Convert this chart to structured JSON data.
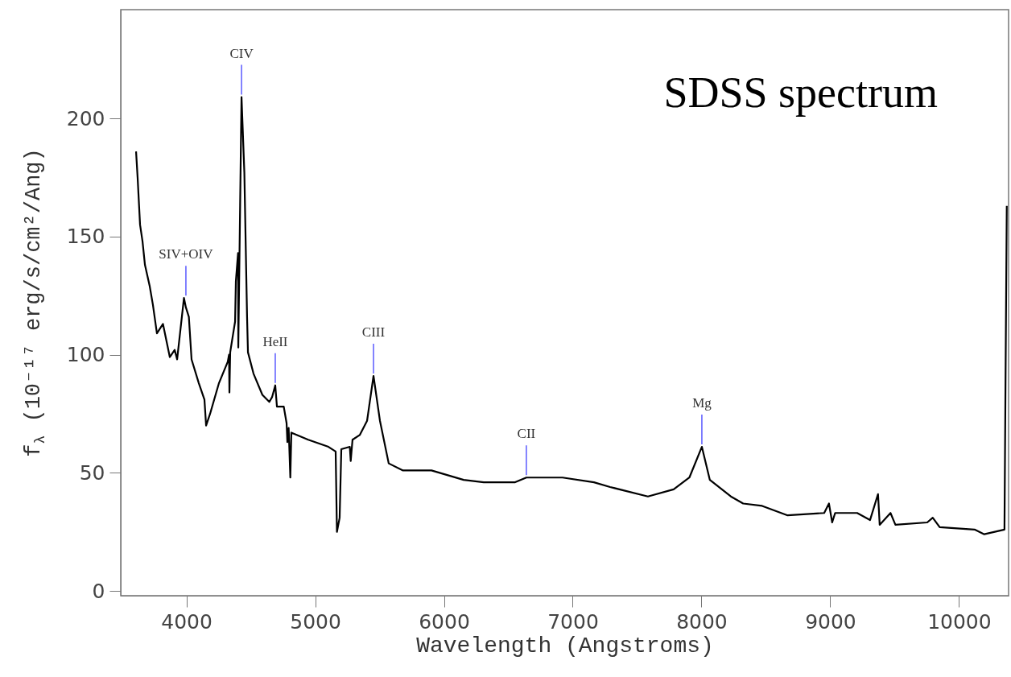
{
  "chart_data": {
    "type": "line",
    "xlabel": "Wavelength (Angstroms)",
    "ylabel": "f$_{λ}$ (10⁻¹⁷ erg/s/cm²/Ang)",
    "x": [
      3609,
      3621,
      3640,
      3659,
      3678,
      3715,
      3740,
      3771,
      3818,
      3871,
      3909,
      3928,
      3981,
      3996,
      4019,
      4040,
      4096,
      4140,
      4153,
      4184,
      4253,
      4321,
      4331,
      4334,
      4340,
      4378,
      4384,
      4401,
      4403,
      4428,
      4450,
      4471,
      4478,
      4521,
      4590,
      4644,
      4665,
      4690,
      4703,
      4756,
      4778,
      4784,
      4794,
      4807,
      4815,
      4946,
      5103,
      5159,
      5169,
      5190,
      5203,
      5269,
      5276,
      5290,
      5346,
      5403,
      5453,
      5503,
      5571,
      5682,
      5903,
      6153,
      6309,
      6553,
      6640,
      6921,
      7165,
      7290,
      7584,
      7784,
      7906,
      8003,
      8065,
      8228,
      8324,
      8471,
      8669,
      8953,
      8990,
      9015,
      9038,
      9209,
      9309,
      9371,
      9384,
      9468,
      9506,
      9753,
      9796,
      9850,
      10121,
      10196,
      10353,
      10371
    ],
    "series": [
      {
        "color": "#000000",
        "values": [
          186,
          175,
          155,
          148,
          138,
          129,
          121,
          109,
          113,
          99,
          102,
          98,
          124,
          120,
          116,
          98,
          88,
          81,
          70,
          75,
          88,
          97,
          100,
          84,
          101,
          114,
          131,
          143,
          103,
          209,
          177,
          116,
          101,
          92,
          83,
          80,
          82,
          87,
          78,
          78,
          71,
          63,
          69,
          48,
          67,
          64,
          61,
          59,
          25,
          31,
          60,
          61,
          55,
          64,
          66,
          72,
          91,
          72,
          54,
          51,
          51,
          47,
          46,
          46,
          48,
          48,
          46,
          44,
          40,
          43,
          48,
          61,
          47,
          40,
          37,
          36,
          32,
          33,
          37,
          29,
          33,
          33,
          30,
          41,
          28,
          33,
          28,
          29,
          31,
          27,
          26,
          24,
          26,
          163
        ]
      }
    ],
    "xlim": [
      3490,
      10385
    ],
    "ylim": [
      -2,
      246
    ],
    "xticks": [
      4000,
      5000,
      6000,
      7000,
      8000,
      9000,
      10000
    ],
    "yticks": [
      0,
      50,
      100,
      150,
      200
    ],
    "grid": false,
    "annotations": [
      "SDSS spectrum",
      {
        "text": "CIV",
        "x": 4428,
        "y": 209
      },
      {
        "text": "SIV+OIV",
        "x": 3996,
        "y": 124
      },
      {
        "text": "HeII",
        "x": 4690,
        "y": 87
      },
      {
        "text": "CIII",
        "x": 5453,
        "y": 91
      },
      {
        "text": "CII",
        "x": 6640,
        "y": 48
      },
      {
        "text": "Mg",
        "x": 8003,
        "y": 61
      }
    ]
  }
}
